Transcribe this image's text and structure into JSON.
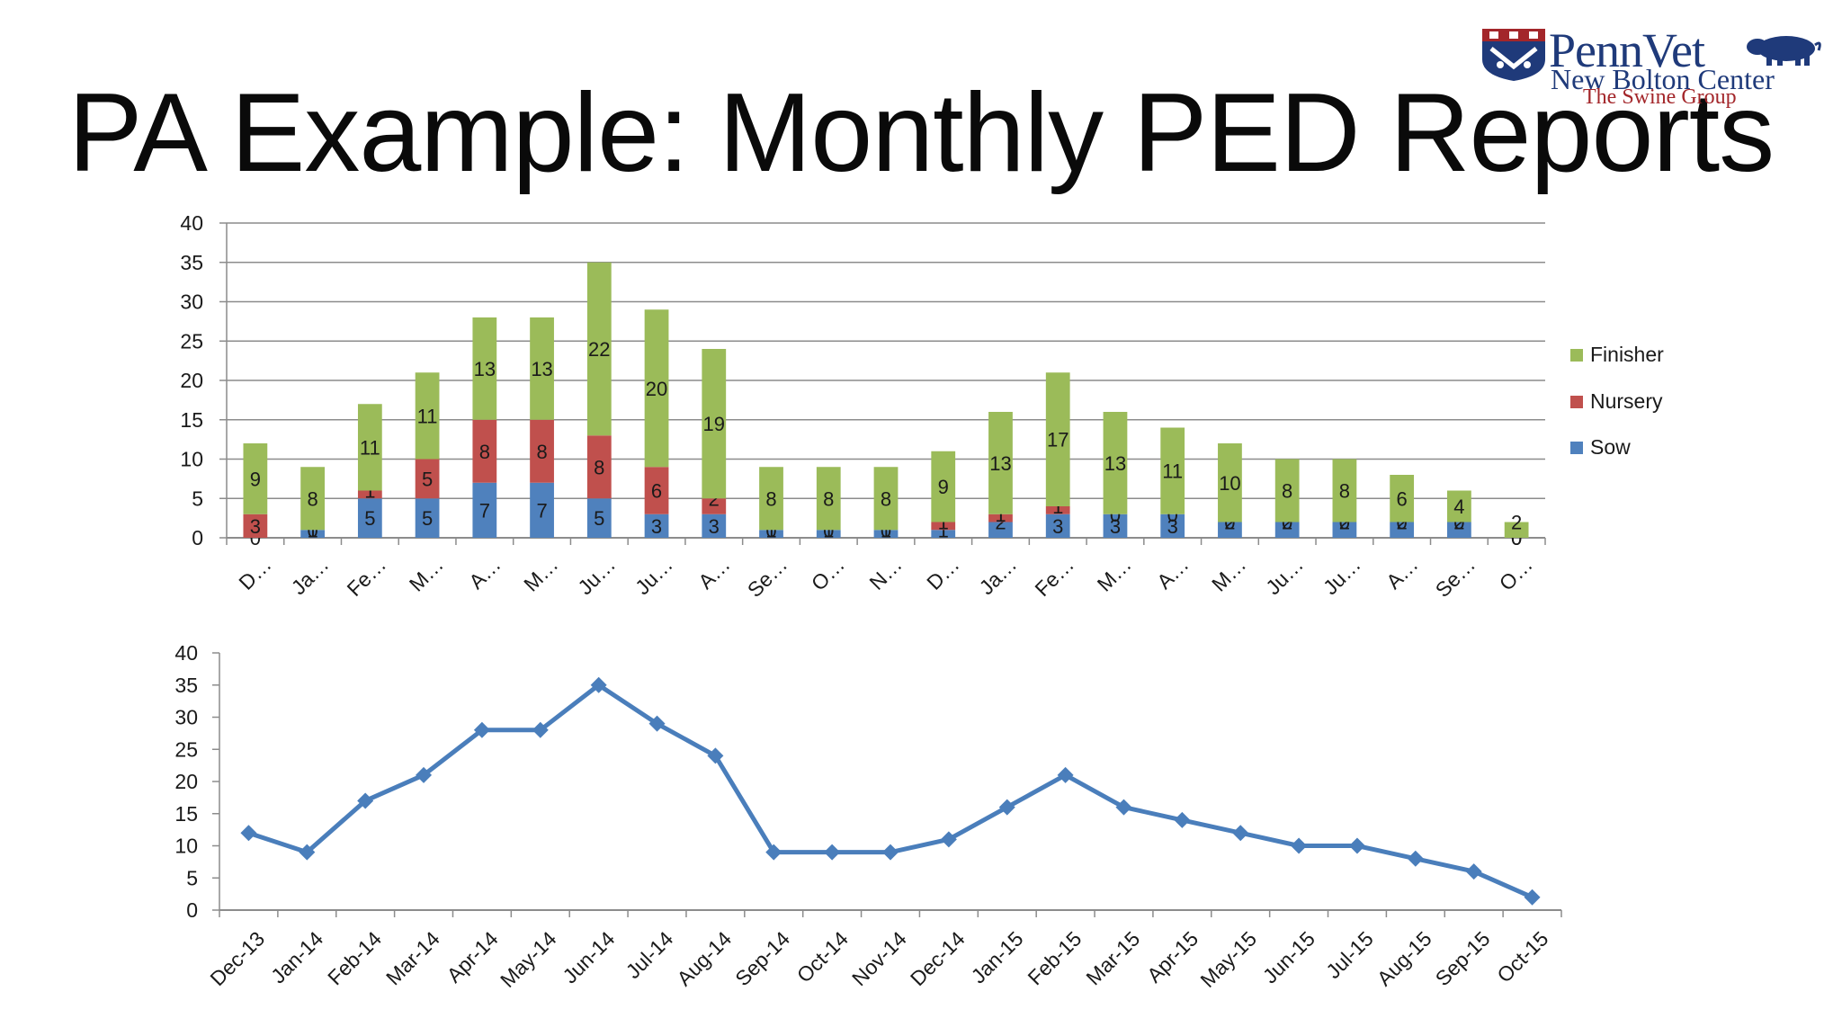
{
  "slide": {
    "title": "PA Example: Monthly PED Reports"
  },
  "logo": {
    "name": "PennVet",
    "sub": "New Bolton Center",
    "group": "The Swine Group",
    "shield_icon": "penn-shield-icon",
    "pig_icon": "pig-icon",
    "colors": {
      "blue": "#1f3a7a",
      "red": "#a3262a"
    }
  },
  "chart_data": [
    {
      "type": "bar",
      "stacked": true,
      "categories": [
        "D…",
        "Ja…",
        "Fe…",
        "M…",
        "A…",
        "M…",
        "Ju…",
        "Ju…",
        "A…",
        "Se…",
        "O…",
        "N…",
        "D…",
        "Ja…",
        "Fe…",
        "M…",
        "A…",
        "M…",
        "Ju…",
        "Ju…",
        "A…",
        "Se…",
        "O…"
      ],
      "series": [
        {
          "name": "Sow",
          "color": "#4f81bd",
          "values": [
            0,
            1,
            5,
            5,
            7,
            7,
            5,
            3,
            3,
            1,
            1,
            1,
            1,
            2,
            3,
            3,
            3,
            2,
            2,
            2,
            2,
            2,
            0
          ]
        },
        {
          "name": "Nursery",
          "color": "#c0504d",
          "values": [
            3,
            0,
            1,
            5,
            8,
            8,
            8,
            6,
            2,
            0,
            0,
            0,
            1,
            1,
            1,
            0,
            0,
            0,
            0,
            0,
            0,
            0,
            0
          ]
        },
        {
          "name": "Finisher",
          "color": "#9bbb59",
          "values": [
            9,
            8,
            11,
            11,
            13,
            13,
            22,
            20,
            19,
            8,
            8,
            8,
            9,
            13,
            17,
            13,
            11,
            10,
            8,
            8,
            6,
            4,
            2
          ]
        }
      ],
      "ylim": [
        0,
        40
      ],
      "yticks": [
        "0",
        "5",
        "10",
        "15",
        "20",
        "25",
        "30",
        "35",
        "40"
      ],
      "grid": true,
      "legend": "right"
    },
    {
      "type": "line",
      "categories": [
        "Dec-13",
        "Jan-14",
        "Feb-14",
        "Mar-14",
        "Apr-14",
        "May-14",
        "Jun-14",
        "Jul-14",
        "Aug-14",
        "Sep-14",
        "Oct-14",
        "Nov-14",
        "Dec-14",
        "Jan-15",
        "Feb-15",
        "Mar-15",
        "Apr-15",
        "May-15",
        "Jun-15",
        "Jul-15",
        "Aug-15",
        "Sep-15",
        "Oct-15"
      ],
      "series": [
        {
          "color": "#4a7ebb",
          "values": [
            12,
            9,
            17,
            21,
            28,
            28,
            35,
            29,
            24,
            9,
            9,
            9,
            11,
            16,
            21,
            16,
            14,
            12,
            10,
            10,
            8,
            6,
            2
          ]
        }
      ],
      "ylim": [
        0,
        40
      ],
      "yticks": [
        "0",
        "5",
        "10",
        "15",
        "20",
        "25",
        "30",
        "35",
        "40"
      ],
      "grid": false,
      "marker": "diamond"
    }
  ]
}
